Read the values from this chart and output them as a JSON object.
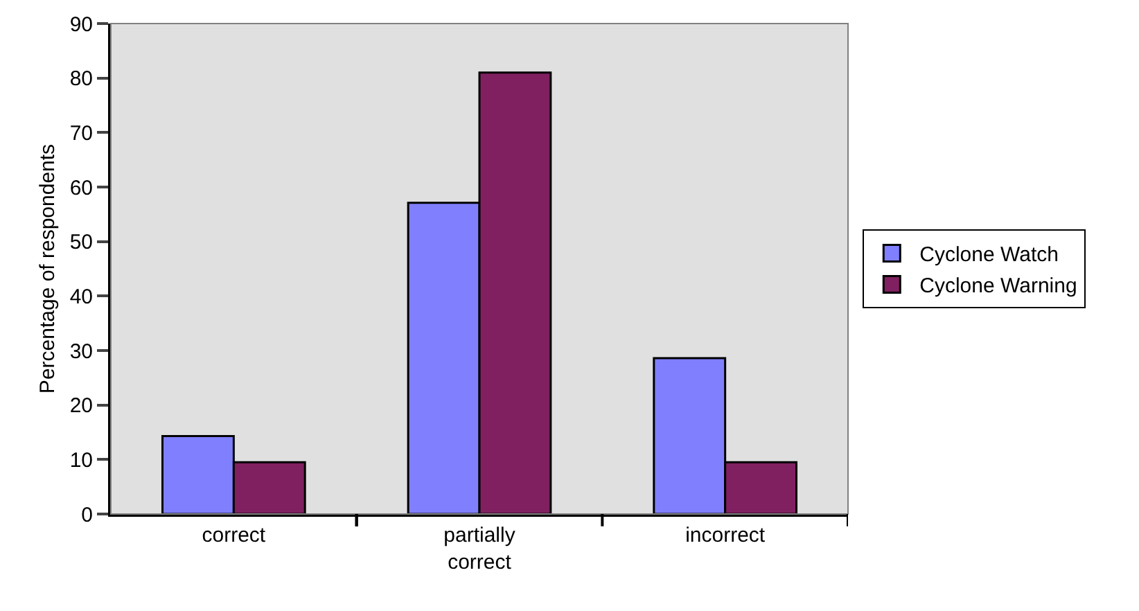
{
  "chart_data": {
    "type": "bar",
    "ylabel": "Percentage of respondents",
    "categories": [
      "correct",
      "partially correct",
      "incorrect"
    ],
    "series": [
      {
        "name": "Cyclone Watch",
        "color": "#8080ff",
        "values": [
          14.3,
          57.1,
          28.6
        ]
      },
      {
        "name": "Cyclone Warning",
        "color": "#802060",
        "values": [
          9.5,
          81,
          9.5
        ]
      }
    ],
    "ylim": [
      0,
      90
    ],
    "yticks": [
      0,
      10,
      20,
      30,
      40,
      50,
      60,
      70,
      80,
      90
    ],
    "grid": false,
    "legend": "right"
  }
}
